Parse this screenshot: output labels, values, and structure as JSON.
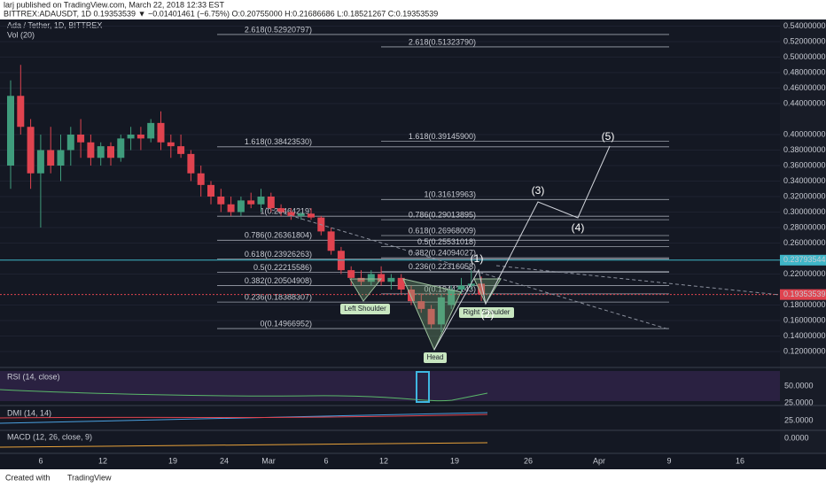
{
  "header": {
    "publisher": "larj published on TradingView.com, March 22, 2018 12:33 EST",
    "symbol_line": "BITTREX:ADAUSDT, 1D 0.19353539 ▼ −0.01401461 (−6.75%) O:0.20755000 H:0.21686686 L:0.18521267 C:0.19353539"
  },
  "chart": {
    "title": "Ada / Tether, 1D, BITTREX",
    "volume_label": "Vol (20)",
    "price_ticks": [
      {
        "value": 0.54,
        "label": "0.54000000"
      },
      {
        "value": 0.52,
        "label": "0.52000000"
      },
      {
        "value": 0.5,
        "label": "0.50000000"
      },
      {
        "value": 0.48,
        "label": "0.48000000"
      },
      {
        "value": 0.46,
        "label": "0.46000000"
      },
      {
        "value": 0.44,
        "label": "0.44000000"
      },
      {
        "value": 0.4,
        "label": "0.40000000"
      },
      {
        "value": 0.38,
        "label": "0.38000000"
      },
      {
        "value": 0.36,
        "label": "0.36000000"
      },
      {
        "value": 0.34,
        "label": "0.34000000"
      },
      {
        "value": 0.32,
        "label": "0.32000000"
      },
      {
        "value": 0.3,
        "label": "0.30000000"
      },
      {
        "value": 0.28,
        "label": "0.28000000"
      },
      {
        "value": 0.26,
        "label": "0.26000000"
      },
      {
        "value": 0.22,
        "label": "0.22000000"
      },
      {
        "value": 0.18,
        "label": "0.18000000"
      },
      {
        "value": 0.16,
        "label": "0.16000000"
      },
      {
        "value": 0.14,
        "label": "0.14000000"
      },
      {
        "value": 0.12,
        "label": "0.12000000"
      }
    ],
    "price_tags": [
      {
        "value": 0.23793544,
        "label": "0.23793544",
        "color": "#3fb6c8"
      },
      {
        "value": 0.19353539,
        "label": "0.19353539",
        "color": "#e0434f"
      }
    ],
    "fib_left": [
      {
        "value": 0.52920797,
        "label": "2.618(0.52920797)"
      },
      {
        "value": 0.3842353,
        "label": "1.618(0.38423530)"
      },
      {
        "value": 0.29464219,
        "label": "1(0.29464219)"
      },
      {
        "value": 0.26361804,
        "label": "0.786(0.26361804)"
      },
      {
        "value": 0.23926263,
        "label": "0.618(0.23926263)"
      },
      {
        "value": 0.22215586,
        "label": "0.5(0.22215586)"
      },
      {
        "value": 0.20504908,
        "label": "0.382(0.20504908)"
      },
      {
        "value": 0.18388307,
        "label": "0.236(0.18388307)"
      },
      {
        "value": 0.14966952,
        "label": "0(0.14966952)"
      }
    ],
    "fib_right": [
      {
        "value": 0.5132379,
        "label": "2.618(0.51323790)"
      },
      {
        "value": 0.391459,
        "label": "1.618(0.39145900)"
      },
      {
        "value": 0.31619963,
        "label": "1(0.31619963)"
      },
      {
        "value": 0.29013895,
        "label": "0.786(0.29013895)"
      },
      {
        "value": 0.26968009,
        "label": "0.618(0.26968009)"
      },
      {
        "value": 0.25531018,
        "label": "0.5(0.25531018)"
      },
      {
        "value": 0.24094027,
        "label": "0.382(0.24094027)"
      },
      {
        "value": 0.22316058,
        "label": "0.236(0.22316058)"
      },
      {
        "value": 0.19442143,
        "label": "0(0.19442143)"
      }
    ],
    "candles": [
      [
        0.36,
        0.47,
        0.33,
        0.45
      ],
      [
        0.45,
        0.49,
        0.4,
        0.41
      ],
      [
        0.41,
        0.42,
        0.33,
        0.35
      ],
      [
        0.35,
        0.4,
        0.28,
        0.38
      ],
      [
        0.38,
        0.41,
        0.35,
        0.36
      ],
      [
        0.36,
        0.4,
        0.34,
        0.38
      ],
      [
        0.38,
        0.41,
        0.36,
        0.4
      ],
      [
        0.4,
        0.42,
        0.37,
        0.39
      ],
      [
        0.39,
        0.4,
        0.36,
        0.37
      ],
      [
        0.37,
        0.39,
        0.36,
        0.385
      ],
      [
        0.385,
        0.39,
        0.36,
        0.37
      ],
      [
        0.37,
        0.4,
        0.365,
        0.395
      ],
      [
        0.395,
        0.41,
        0.38,
        0.4
      ],
      [
        0.4,
        0.41,
        0.38,
        0.395
      ],
      [
        0.395,
        0.42,
        0.39,
        0.415
      ],
      [
        0.415,
        0.43,
        0.38,
        0.39
      ],
      [
        0.39,
        0.4,
        0.37,
        0.385
      ],
      [
        0.385,
        0.4,
        0.37,
        0.375
      ],
      [
        0.375,
        0.38,
        0.34,
        0.35
      ],
      [
        0.35,
        0.36,
        0.32,
        0.335
      ],
      [
        0.335,
        0.34,
        0.31,
        0.32
      ],
      [
        0.32,
        0.33,
        0.3,
        0.31
      ],
      [
        0.31,
        0.32,
        0.295,
        0.3
      ],
      [
        0.3,
        0.32,
        0.295,
        0.315
      ],
      [
        0.315,
        0.325,
        0.305,
        0.31
      ],
      [
        0.31,
        0.33,
        0.3,
        0.32
      ],
      [
        0.32,
        0.325,
        0.3,
        0.305
      ],
      [
        0.305,
        0.31,
        0.295,
        0.3
      ],
      [
        0.3,
        0.305,
        0.29,
        0.295
      ],
      [
        0.295,
        0.3,
        0.29,
        0.298
      ],
      [
        0.298,
        0.305,
        0.29,
        0.293
      ],
      [
        0.293,
        0.295,
        0.27,
        0.275
      ],
      [
        0.275,
        0.28,
        0.245,
        0.25
      ],
      [
        0.25,
        0.255,
        0.22,
        0.225
      ],
      [
        0.225,
        0.23,
        0.205,
        0.215
      ],
      [
        0.215,
        0.225,
        0.205,
        0.21
      ],
      [
        0.21,
        0.225,
        0.205,
        0.22
      ],
      [
        0.22,
        0.23,
        0.205,
        0.21
      ],
      [
        0.21,
        0.22,
        0.2,
        0.215
      ],
      [
        0.215,
        0.22,
        0.195,
        0.2
      ],
      [
        0.2,
        0.205,
        0.18,
        0.185
      ],
      [
        0.185,
        0.195,
        0.17,
        0.175
      ],
      [
        0.175,
        0.18,
        0.15,
        0.155
      ],
      [
        0.155,
        0.195,
        0.145,
        0.19
      ],
      [
        0.18,
        0.205,
        0.175,
        0.2
      ],
      [
        0.2,
        0.215,
        0.195,
        0.205
      ],
      [
        0.205,
        0.225,
        0.2,
        0.2076
      ],
      [
        0.20755,
        0.21686686,
        0.18521267,
        0.19353539
      ]
    ],
    "annotations": {
      "left_shoulder": "Left Shoulder",
      "head": "Head",
      "right_shoulder": "Right Shoulder",
      "w1": "(1)",
      "w2": "(2)",
      "w3": "(3)",
      "w4": "(4)",
      "w5": "(5)"
    },
    "indicators": {
      "rsi": "RSI (14, close)",
      "rsi_50": "50.0000",
      "rsi_25": "25.0000",
      "dmi": "DMI (14, 14)",
      "dmi_25": "25.0000",
      "macd": "MACD (12, 26, close, 9)",
      "macd_0": "0.0000"
    },
    "dates": [
      "6",
      "12",
      "19",
      "24",
      "Mar",
      "6",
      "12",
      "19",
      "26",
      "Apr",
      "9",
      "16"
    ]
  },
  "footer": {
    "created": "Created with",
    "brand": "TradingView"
  }
}
